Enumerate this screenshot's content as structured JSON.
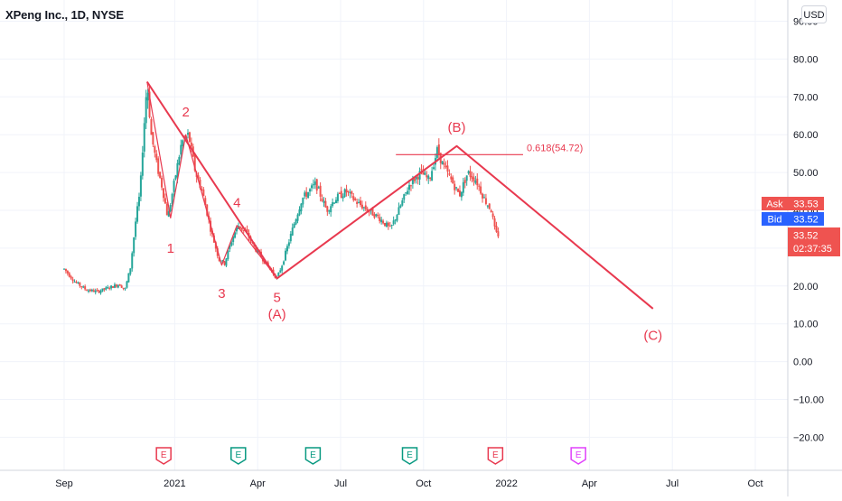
{
  "header": {
    "symbol_title": "XPeng Inc., 1D, NYSE",
    "currency_label": "USD"
  },
  "colors": {
    "up": "#26a69a",
    "down": "#ef5350",
    "wave": "#e8394f",
    "grid": "#f0f3fa",
    "axis_text": "#131722",
    "bid": "#2962ff",
    "ask": "#ef5350"
  },
  "price_tags": {
    "ask_label": "Ask",
    "ask_value": "33.53",
    "bid_label": "Bid",
    "bid_value": "33.52",
    "last_value": "33.52",
    "countdown": "02:37:35"
  },
  "earnings_markers": [
    {
      "label": "E",
      "month_index": 3.6,
      "color": "#e8394f"
    },
    {
      "label": "E",
      "month_index": 6.3,
      "color": "#089981"
    },
    {
      "label": "E",
      "month_index": 9.0,
      "color": "#089981"
    },
    {
      "label": "E",
      "month_index": 12.5,
      "color": "#089981"
    },
    {
      "label": "E",
      "month_index": 15.6,
      "color": "#e8394f"
    },
    {
      "label": "E",
      "month_index": 18.6,
      "color": "#e040fb"
    }
  ],
  "chart_data": {
    "type": "candlestick",
    "title": "XPeng Inc., 1D, NYSE",
    "x_tick_labels": [
      "Sep",
      "2021",
      "Apr",
      "Jul",
      "Oct",
      "2022",
      "Apr",
      "Jul",
      "Oct"
    ],
    "x_tick_month_index": [
      0,
      4,
      7,
      10,
      13,
      16,
      19,
      22,
      25
    ],
    "y_ticks": [
      90,
      80,
      70,
      60,
      50,
      40,
      30,
      20,
      10,
      0,
      -10,
      -20
    ],
    "y_tick_labels": [
      "90.00",
      "80.00",
      "70.00",
      "60.00",
      "50.00",
      "40.00",
      "30.00",
      "20.00",
      "10.00",
      "0.00",
      "−10.00",
      "−20.00"
    ],
    "ylim": [
      -27,
      93
    ],
    "price_path": [
      [
        0.0,
        24.5
      ],
      [
        0.4,
        21
      ],
      [
        0.8,
        19
      ],
      [
        1.2,
        18.5
      ],
      [
        1.6,
        19.5
      ],
      [
        2.0,
        20.5
      ],
      [
        2.2,
        19
      ],
      [
        2.4,
        25
      ],
      [
        2.6,
        38
      ],
      [
        2.75,
        45
      ],
      [
        2.85,
        58
      ],
      [
        3.0,
        74
      ],
      [
        3.15,
        60
      ],
      [
        3.35,
        52
      ],
      [
        3.55,
        46
      ],
      [
        3.75,
        38
      ],
      [
        3.95,
        46
      ],
      [
        4.1,
        52
      ],
      [
        4.25,
        58
      ],
      [
        4.5,
        60
      ],
      [
        4.75,
        50
      ],
      [
        5.0,
        45
      ],
      [
        5.3,
        35
      ],
      [
        5.6,
        27
      ],
      [
        5.8,
        26
      ],
      [
        6.1,
        33
      ],
      [
        6.3,
        36
      ],
      [
        6.6,
        34
      ],
      [
        6.9,
        30
      ],
      [
        7.1,
        28
      ],
      [
        7.5,
        24
      ],
      [
        7.7,
        22
      ],
      [
        7.9,
        26
      ],
      [
        8.3,
        36
      ],
      [
        8.6,
        43
      ],
      [
        9.1,
        47
      ],
      [
        9.5,
        40
      ],
      [
        9.8,
        43
      ],
      [
        10.2,
        45
      ],
      [
        10.6,
        42
      ],
      [
        11.0,
        40
      ],
      [
        11.4,
        38
      ],
      [
        11.8,
        35
      ],
      [
        12.1,
        40
      ],
      [
        12.5,
        47
      ],
      [
        12.9,
        50
      ],
      [
        13.2,
        48
      ],
      [
        13.5,
        56
      ],
      [
        13.7,
        52
      ],
      [
        14.0,
        48
      ],
      [
        14.3,
        44
      ],
      [
        14.6,
        50
      ],
      [
        14.9,
        48
      ],
      [
        15.2,
        43
      ],
      [
        15.45,
        40
      ],
      [
        15.6,
        34
      ],
      [
        15.7,
        33.52
      ]
    ],
    "annotations": {
      "wave_lines": [
        [
          [
            3.0,
            74
          ],
          [
            7.7,
            22
          ],
          [
            14.2,
            57
          ],
          [
            21.3,
            14
          ]
        ],
        [
          [
            3.0,
            74
          ],
          [
            3.85,
            38
          ],
          [
            4.4,
            60
          ],
          [
            5.7,
            25.5
          ],
          [
            6.25,
            36
          ],
          [
            7.7,
            22
          ]
        ]
      ],
      "wave_labels": [
        {
          "text": "1",
          "x": 3.85,
          "y": 30
        },
        {
          "text": "2",
          "x": 4.4,
          "y": 66
        },
        {
          "text": "3",
          "x": 5.7,
          "y": 18
        },
        {
          "text": "4",
          "x": 6.25,
          "y": 42
        },
        {
          "text": "5",
          "x": 7.7,
          "y": 17
        },
        {
          "text": "(A)",
          "x": 7.7,
          "y": 12.5
        },
        {
          "text": "(B)",
          "x": 14.2,
          "y": 62
        },
        {
          "text": "(C)",
          "x": 21.3,
          "y": 7
        }
      ],
      "fib_level": {
        "label": "0.618(54.72)",
        "value": 54.72,
        "x_start": 12.0,
        "x_end": 16.6
      }
    }
  }
}
